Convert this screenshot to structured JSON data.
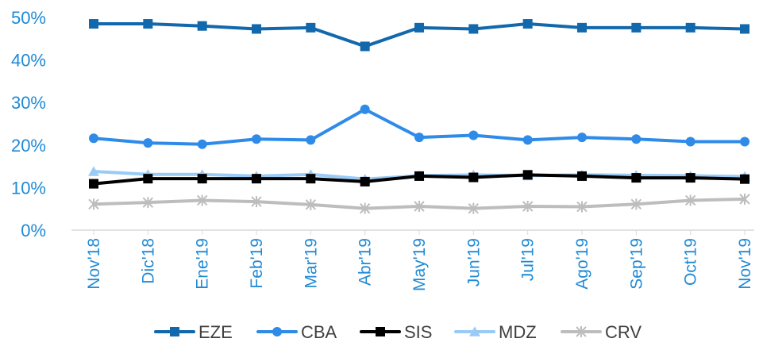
{
  "colors": {
    "axis_text": "#1F8AD6",
    "axis_line": "#D9D9D9",
    "legend_text": "#404040"
  },
  "chart_data": {
    "type": "line",
    "title": "",
    "xlabel": "",
    "ylabel": "",
    "grid": false,
    "legend_position": "bottom",
    "ylim": [
      0,
      50
    ],
    "yticks": [
      "0%",
      "10%",
      "20%",
      "30%",
      "40%",
      "50%"
    ],
    "categories": [
      "Nov'18",
      "Dic'18",
      "Ene'19",
      "Feb'19",
      "Mar'19",
      "Abr'19",
      "May'19",
      "Jun'19",
      "Jul'19",
      "Ago'19",
      "Sep'19",
      "Oct'19",
      "Nov'19"
    ],
    "series": [
      {
        "name": "EZE",
        "color": "#1268AC",
        "marker": "square",
        "values": [
          48.5,
          48.5,
          48.0,
          47.3,
          47.6,
          43.2,
          47.6,
          47.3,
          48.5,
          47.6,
          47.6,
          47.6,
          47.3
        ]
      },
      {
        "name": "CBA",
        "color": "#2F8BE8",
        "marker": "circle",
        "values": [
          21.6,
          20.5,
          20.2,
          21.4,
          21.2,
          28.4,
          21.8,
          22.3,
          21.2,
          21.8,
          21.4,
          20.8,
          20.8
        ]
      },
      {
        "name": "SIS",
        "color": "#000000",
        "marker": "square",
        "values": [
          10.9,
          12.1,
          12.1,
          12.1,
          12.1,
          11.4,
          12.7,
          12.4,
          13.0,
          12.7,
          12.3,
          12.3,
          12.0
        ]
      },
      {
        "name": "MDZ",
        "color": "#9ACBF7",
        "marker": "triangle",
        "values": [
          13.8,
          13.1,
          13.1,
          12.7,
          13.1,
          12.0,
          12.8,
          13.0,
          12.8,
          13.0,
          12.9,
          12.8,
          12.6
        ]
      },
      {
        "name": "CRV",
        "color": "#BDBDBD",
        "marker": "star",
        "values": [
          6.1,
          6.5,
          7.0,
          6.7,
          6.0,
          5.1,
          5.6,
          5.1,
          5.6,
          5.5,
          6.1,
          7.0,
          7.3
        ]
      }
    ]
  }
}
